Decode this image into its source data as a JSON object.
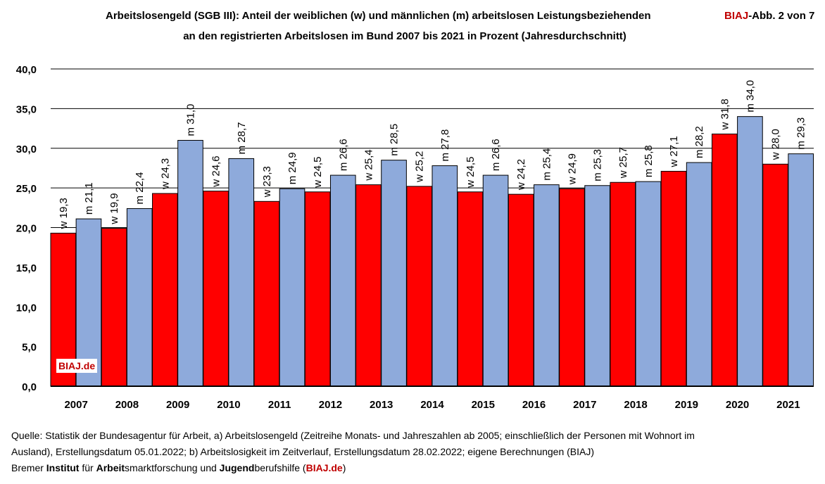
{
  "title": {
    "line1": "Arbeitslosengeld (SGB III): Anteil der weiblichen (w) und männlichen (m) arbeitslosen Leistungsbeziehenden",
    "line2": "an den registrierten Arbeitslosen im Bund 2007 bis 2021 in Prozent (Jahresdurchschnitt)",
    "badge_brand": "BIAJ",
    "badge_rest": "-Abb. 2 von 7"
  },
  "watermark": "BIAJ.de",
  "source": {
    "line1": "Quelle: Statistik der Bundesagentur für Arbeit, a) Arbeitslosengeld  (Zeitreihe Monats- und Jahreszahlen ab 2005; einschließlich der Personen mit Wohnort im",
    "line2": "Ausland), Erstellungsdatum 05.01.2022; b) Arbeitslosigkeit im Zeitverlauf, Erstellungsdatum 28.02.2022; eigene Berechnungen (BIAJ)",
    "inst_1": "Bremer ",
    "inst_2": "Institut",
    "inst_3": " für ",
    "inst_4": "Arbeit",
    "inst_5": "smarktforschung und ",
    "inst_6": "Jugend",
    "inst_7": "berufshilfe (",
    "inst_8": "BIAJ.de",
    "inst_9": ")"
  },
  "colors": {
    "female": "#ff0000",
    "male": "#8eaadb",
    "brand": "#c00000"
  },
  "chart_data": {
    "type": "bar",
    "title": "Arbeitslosengeld (SGB III): Anteil der weiblichen (w) und männlichen (m) arbeitslosen Leistungsbeziehenden an den registrierten Arbeitslosen im Bund 2007 bis 2021 in Prozent (Jahresdurchschnitt)",
    "categories": [
      "2007",
      "2008",
      "2009",
      "2010",
      "2011",
      "2012",
      "2013",
      "2014",
      "2015",
      "2016",
      "2017",
      "2018",
      "2019",
      "2020",
      "2021"
    ],
    "series": [
      {
        "name": "w",
        "values": [
          19.3,
          19.9,
          24.3,
          24.6,
          23.3,
          24.5,
          25.4,
          25.2,
          24.5,
          24.2,
          24.9,
          25.7,
          27.1,
          31.8,
          28.0
        ]
      },
      {
        "name": "m",
        "values": [
          21.1,
          22.4,
          31.0,
          28.7,
          24.9,
          26.6,
          28.5,
          27.8,
          26.6,
          25.4,
          25.3,
          25.8,
          28.2,
          34.0,
          29.3
        ]
      }
    ],
    "ylim": [
      0,
      40
    ],
    "yticks": [
      "0,0",
      "5,0",
      "10,0",
      "15,0",
      "20,0",
      "25,0",
      "30,0",
      "35,0",
      "40,0"
    ],
    "grid": true,
    "xlabel": "",
    "ylabel": ""
  }
}
